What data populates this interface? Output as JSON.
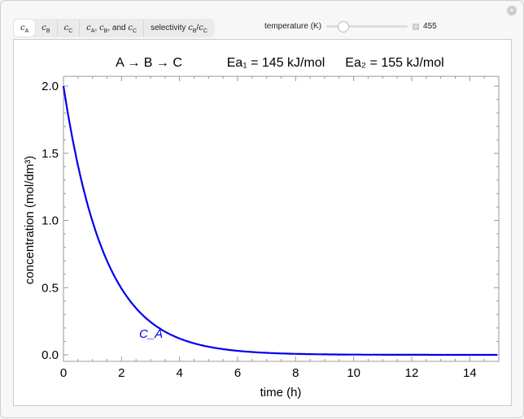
{
  "tabs": [
    {
      "label": "c",
      "sub": "A",
      "active": true
    },
    {
      "label": "c",
      "sub": "B"
    },
    {
      "label": "c",
      "sub": "C"
    },
    {
      "label": "c_A, c_B, and c_C"
    },
    {
      "label": "selectivity c_B/c_C"
    }
  ],
  "control": {
    "label": "temperature (K)",
    "value": "455",
    "slider_fraction": 0.2
  },
  "plot": {
    "title_reaction": "A → B → C",
    "ea1": "Ea₁ = 145 kJ/mol",
    "ea2": "Ea₂ = 155 kJ/mol",
    "curve_label": "C_A",
    "color": "#0000ee"
  },
  "chart_data": {
    "type": "line",
    "xlabel": "time (h)",
    "ylabel": "concentration (mol/dm³)",
    "xlim": [
      0,
      15
    ],
    "ylim": [
      0,
      2
    ],
    "xticks": [
      0,
      2,
      4,
      6,
      8,
      10,
      12,
      14
    ],
    "yticks": [
      "0.0",
      "0.5",
      "1.0",
      "1.5",
      "2.0"
    ],
    "series": [
      {
        "name": "C_A",
        "initial": 2.0,
        "decay_rate_per_h": 0.7
      }
    ]
  }
}
